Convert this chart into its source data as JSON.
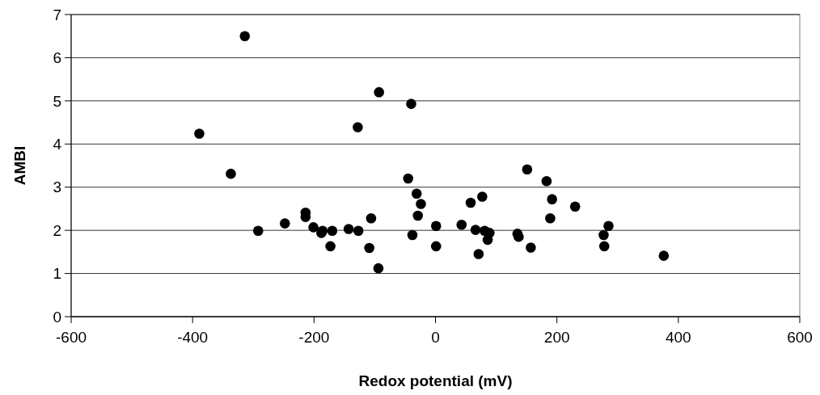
{
  "chart_data": {
    "type": "scatter",
    "xlabel": "Redox potential (mV)",
    "ylabel": "AMBI",
    "xlim": [
      -600,
      600
    ],
    "ylim": [
      0,
      7
    ],
    "xticks": [
      -600,
      -400,
      -200,
      0,
      200,
      400,
      600
    ],
    "yticks": [
      0,
      1,
      2,
      3,
      4,
      5,
      6,
      7
    ],
    "grid": "y",
    "marker": "circle",
    "series": [
      {
        "color": "#000000",
        "x": [
          -314,
          -389,
          -337,
          -292,
          -248,
          -214,
          -214,
          -201,
          -188,
          -186,
          -170,
          -173,
          -143,
          -127,
          -128,
          -106,
          -109,
          -94,
          -93,
          -40,
          -45,
          -38,
          -31,
          -24,
          -29,
          1,
          1,
          43,
          58,
          66,
          71,
          77,
          81,
          89,
          86,
          135,
          137,
          151,
          157,
          183,
          192,
          189,
          230,
          277,
          278,
          285,
          376
        ],
        "values": [
          6.5,
          4.24,
          3.31,
          1.99,
          2.16,
          2.41,
          2.31,
          2.07,
          1.94,
          1.99,
          1.99,
          1.63,
          2.03,
          1.99,
          4.39,
          2.28,
          1.59,
          1.12,
          5.2,
          4.93,
          3.2,
          1.89,
          2.85,
          2.61,
          2.34,
          2.1,
          1.63,
          2.13,
          2.64,
          2.01,
          1.45,
          2.78,
          1.99,
          1.94,
          1.78,
          1.92,
          1.85,
          3.41,
          1.6,
          3.14,
          2.72,
          2.28,
          2.55,
          1.89,
          1.63,
          2.1,
          1.41
        ]
      }
    ]
  }
}
